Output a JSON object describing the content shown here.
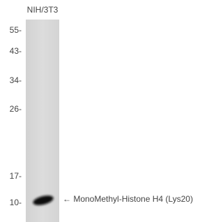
{
  "blot": {
    "lane_label": "NIH/3T3",
    "markers": [
      "55-",
      "43-",
      "34-",
      "26-",
      "17-",
      "10-"
    ],
    "band_label": "← MonoMethyl-Histone H4 (Lys20)"
  }
}
